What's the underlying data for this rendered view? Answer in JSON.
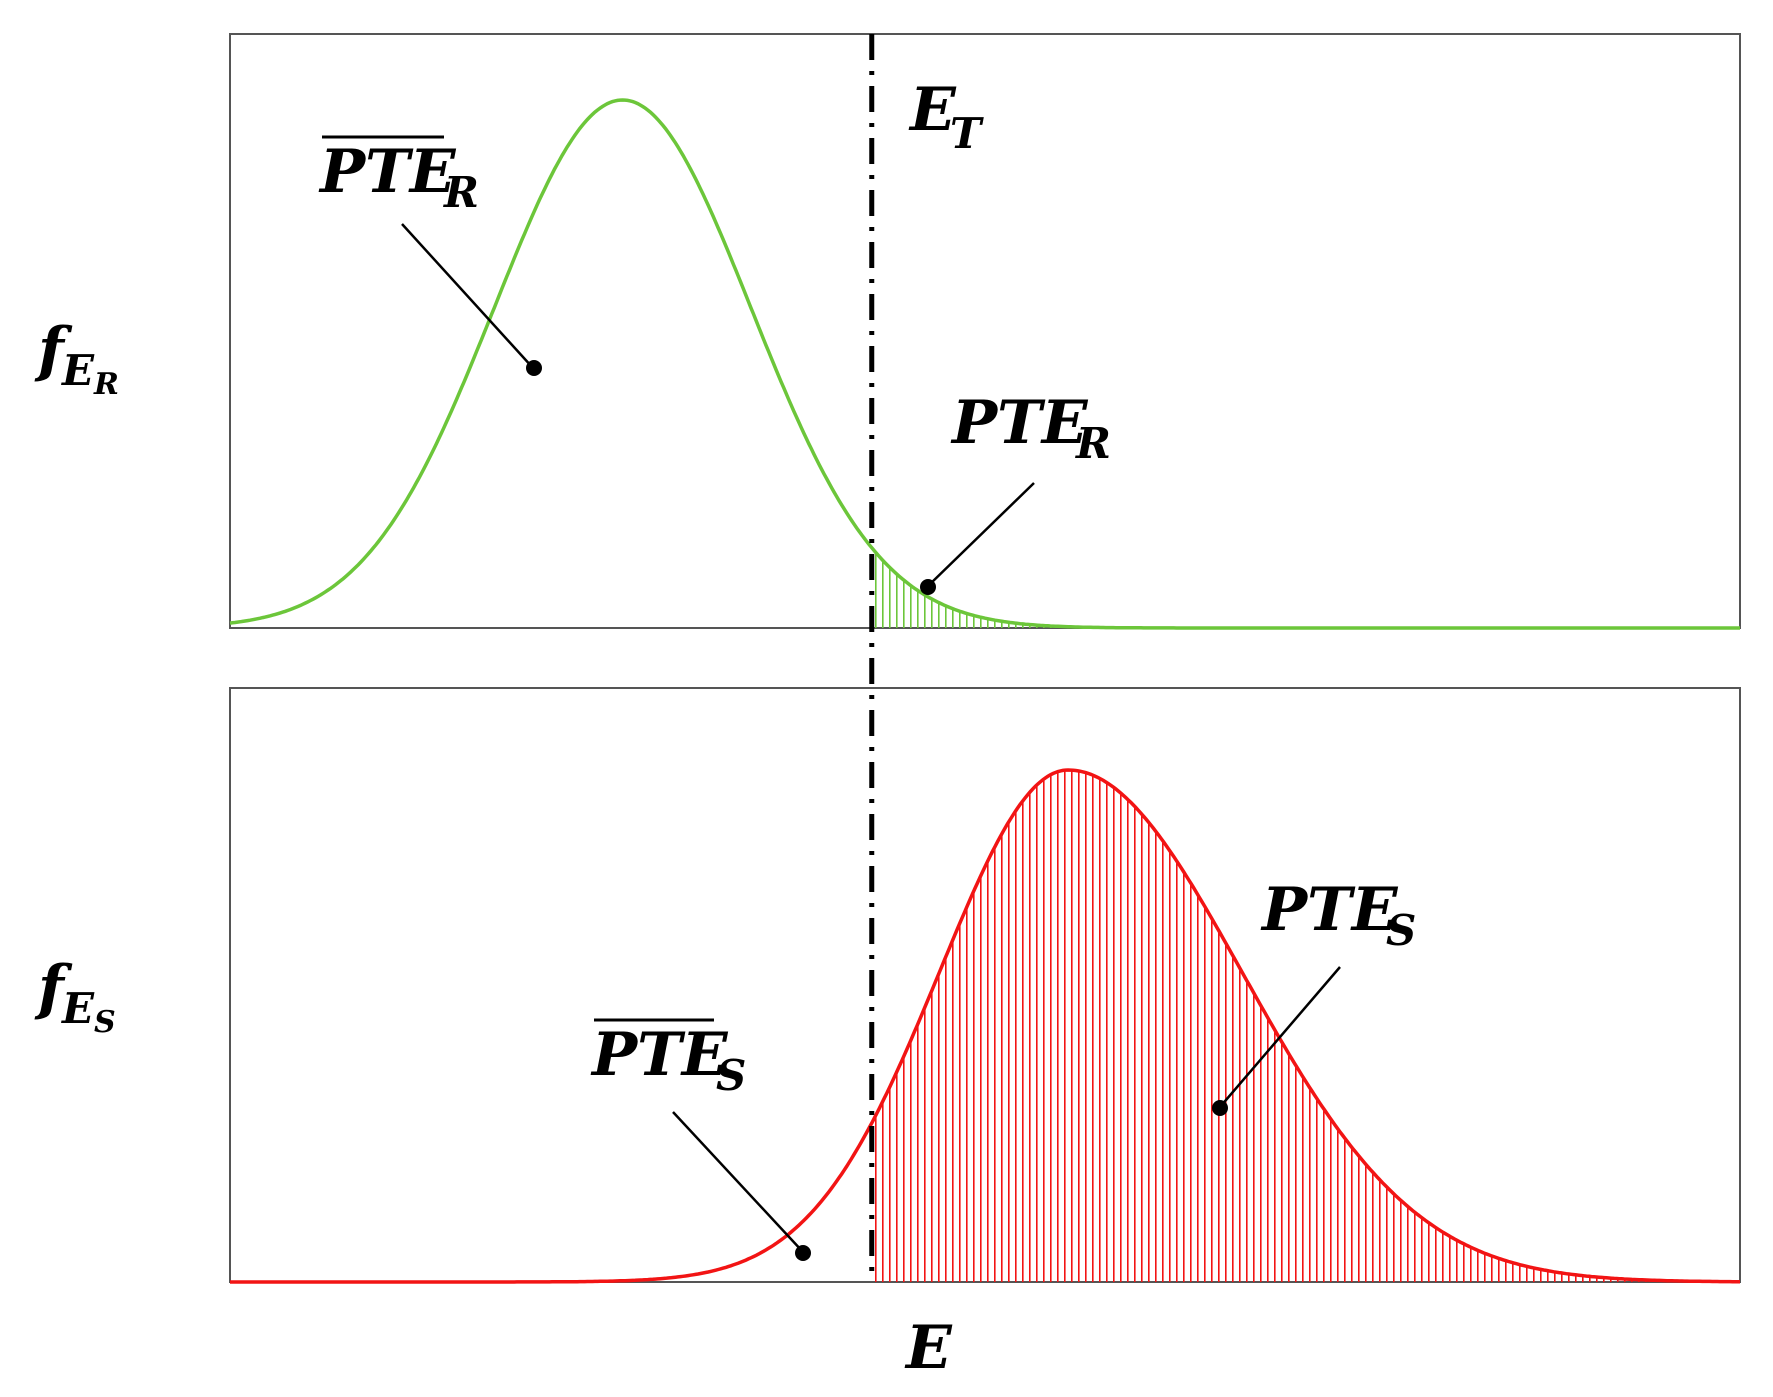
{
  "colors": {
    "receiver_curve": "#6cc63a",
    "sender_curve": "#f21414",
    "threshold_line": "#000000",
    "frame": "#555555"
  },
  "labels": {
    "y_top": {
      "main": "f",
      "sub": "E",
      "subsub": "R"
    },
    "y_bottom": {
      "main": "f",
      "sub": "E",
      "subsub": "S"
    },
    "threshold": {
      "main": "E",
      "sub": "T"
    },
    "x_axis": "E",
    "pte_r_bar": {
      "main": "PTE",
      "sub": "R"
    },
    "pte_r": {
      "main": "PTE",
      "sub": "R"
    },
    "pte_s_bar": {
      "main": "PTE",
      "sub": "S"
    },
    "pte_s": {
      "main": "PTE",
      "sub": "S"
    }
  },
  "chart_data": [
    {
      "type": "area",
      "panel": "top",
      "series": [
        {
          "distribution": "normal",
          "mean": 0.26,
          "sd": 0.085,
          "color": "#6cc63a",
          "hatched_region": "x > 0.425"
        }
      ],
      "threshold_x": 0.425,
      "xlim": [
        0,
        1
      ]
    },
    {
      "type": "area",
      "panel": "bottom",
      "series": [
        {
          "distribution": "skew-normal",
          "peak": 0.555,
          "sd_left": 0.085,
          "sd_right": 0.115,
          "color": "#f21414",
          "hatched_region": "x > 0.425"
        }
      ],
      "threshold_x": 0.425,
      "xlim": [
        0,
        1
      ]
    }
  ]
}
